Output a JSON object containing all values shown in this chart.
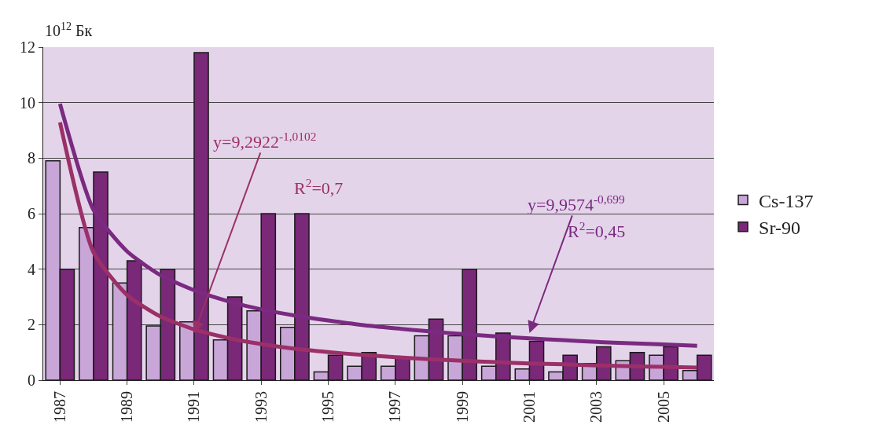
{
  "chart_data": {
    "type": "bar",
    "ylabel": "10$^{12}$ Бк",
    "categories": [
      "1987",
      null,
      "1989",
      null,
      "1991",
      null,
      "1993",
      null,
      "1995",
      null,
      "1997",
      null,
      "1999",
      null,
      "2001",
      null,
      "2003",
      null,
      "2005",
      null
    ],
    "series": [
      {
        "name": "Cs-137",
        "color": "#c8a6d8",
        "values": [
          7.9,
          5.5,
          3.5,
          1.95,
          2.1,
          1.45,
          2.5,
          1.9,
          0.3,
          0.5,
          0.5,
          1.6,
          1.6,
          0.5,
          0.4,
          0.3,
          0.6,
          0.7,
          0.9,
          0.35
        ]
      },
      {
        "name": "Sr-90",
        "color": "#7a2878",
        "values": [
          4,
          7.5,
          4.3,
          4,
          11.8,
          3,
          6,
          6,
          0.9,
          1.0,
          0.8,
          2.2,
          4,
          1.7,
          1.4,
          0.9,
          1.2,
          1.0,
          1.2,
          0.9
        ]
      },
      {
        "type": "line",
        "color": "#9b3068",
        "values": [
          9.29,
          4.6,
          3.07,
          2.29,
          1.83,
          1.52,
          1.3,
          1.13,
          1.01,
          0.91,
          0.83,
          0.76,
          0.7,
          0.65,
          0.6,
          0.57,
          0.53,
          0.5,
          0.48,
          0.45
        ]
      },
      {
        "type": "line",
        "color": "#7a2a80",
        "values": [
          9.96,
          6.13,
          4.64,
          3.78,
          3.24,
          2.85,
          2.55,
          2.33,
          2.15,
          1.99,
          1.87,
          1.76,
          1.66,
          1.58,
          1.51,
          1.44,
          1.38,
          1.33,
          1.29,
          1.24
        ]
      }
    ],
    "annotations": [
      {
        "text": "y=9,2922$^{-1,0102}$",
        "x": "1991",
        "y": 1.7
      },
      {
        "text": "y=9,9574$^{-0,699}$",
        "x": "2001",
        "y": 1.7
      },
      "R$^{2}$=0,7",
      "R$^{2}$=0,45"
    ],
    "ylim": [
      0,
      12
    ],
    "yticks": [
      0,
      2,
      4,
      6,
      8,
      10,
      12
    ],
    "grid": "y",
    "legend": "right",
    "marker": "none"
  }
}
